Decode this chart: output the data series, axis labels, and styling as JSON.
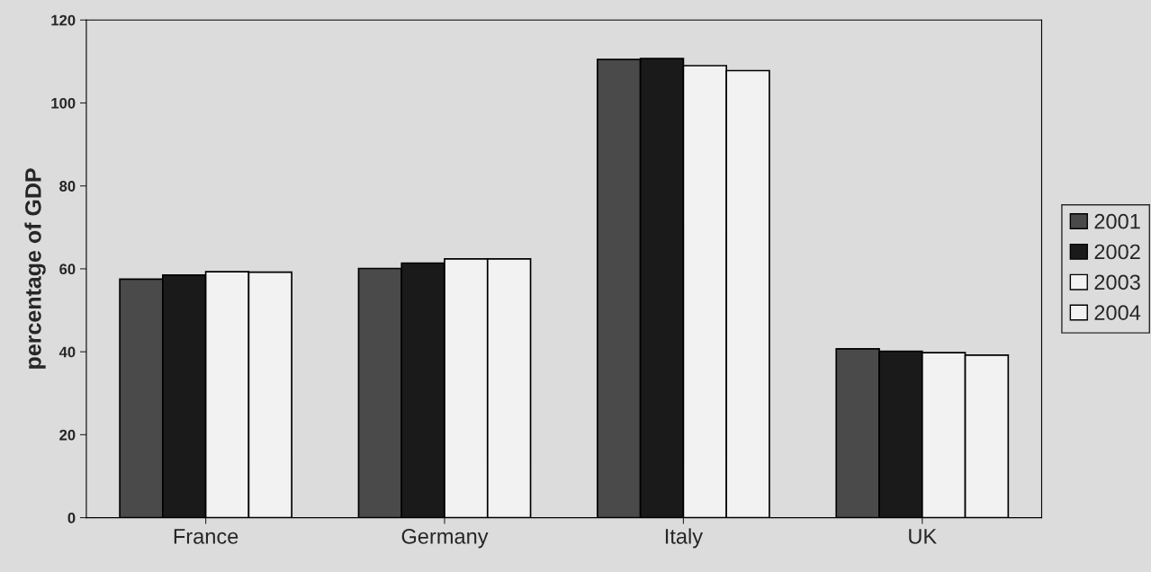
{
  "chart_data": {
    "type": "bar",
    "ylabel": "percentage of GDP",
    "categories": [
      "France",
      "Germany",
      "Italy",
      "UK"
    ],
    "series": [
      {
        "name": "2001",
        "color": "#4a4a4a",
        "values": [
          57.5,
          60.1,
          110.5,
          40.7
        ]
      },
      {
        "name": "2002",
        "color": "#1a1a1a",
        "values": [
          58.5,
          61.4,
          110.7,
          40.1
        ]
      },
      {
        "name": "2003",
        "color": "#f2f2f2",
        "values": [
          59.3,
          62.4,
          109,
          39.8
        ]
      },
      {
        "name": "2004",
        "color": "#f2f2f2",
        "values": [
          59.2,
          62.4,
          107.8,
          39.2
        ]
      }
    ],
    "ylim": [
      0,
      120
    ],
    "yticks": [
      0,
      20,
      40,
      60,
      80,
      100,
      120
    ],
    "grid": false,
    "legend": "right"
  }
}
